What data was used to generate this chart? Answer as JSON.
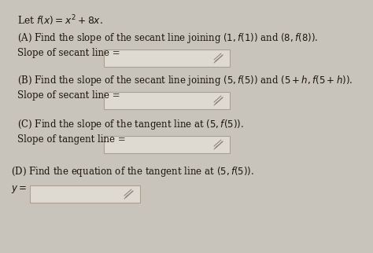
{
  "bg_color": "#c8c4bc",
  "paper_color": "#e8e5de",
  "text_color": "#1a1408",
  "box_face": "#dedad2",
  "box_edge": "#aaa090",
  "pencil_color": "#888070",
  "title": "Let $f(x) = x^2 + 8x$.",
  "A_q": "(A) Find the slope of the secant line joining $(1, f(1))$ and $(8, f(8))$.",
  "A_l": "Slope of secant line =",
  "B_q": "(B) Find the slope of the secant line joining $(5, f(5))$ and $(5 + h, f(5 + h))$.",
  "B_l": "Slope of secant line =",
  "C_q": "(C) Find the slope of the tangent line at $(5, f(5))$.",
  "C_l": "Slope of tangent line =",
  "D_q": "(D) Find the equation of the tangent line at $(5, f(5))$.",
  "D_l": "$y =$",
  "fs": 8.5,
  "fs_title": 8.8
}
